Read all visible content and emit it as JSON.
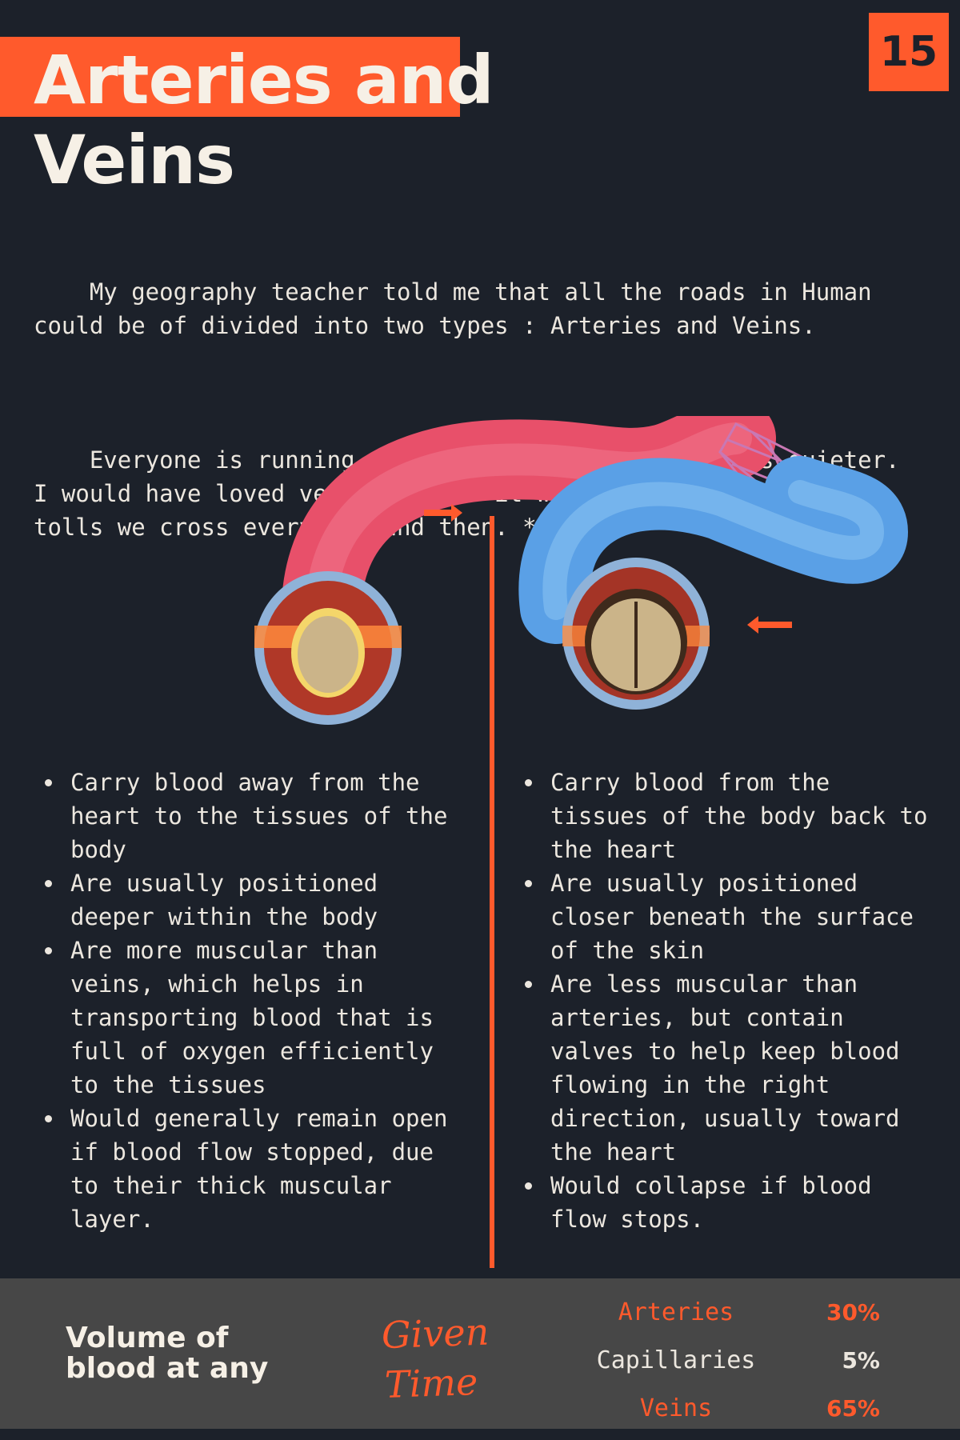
{
  "header": {
    "title_line1": "Arteries and",
    "title_line2": "Veins",
    "page_number": "15"
  },
  "intro": {
    "paragraph1": "    My geography teacher told me that all the roads in Human\ncould be of divided into two types : Arteries and Veins.",
    "paragraph2": "    Everyone is running to work in Arteries. Veins is quieter.\nI would have loved veins more if it weren't for these highway\ntolls we cross every now and then. *Sigh*"
  },
  "arteries": {
    "points": [
      "Carry blood away from the heart to the tissues of the body",
      "Are usually positioned deeper within the body",
      "Are more muscular than veins, which helps in transporting blood that is full of oxygen efficiently to the tissues",
      "Would generally remain open if blood flow stopped, due to their thick muscular layer."
    ]
  },
  "veins": {
    "points": [
      "Carry blood from the tissues of the body back to the heart",
      "Are usually positioned closer beneath the surface of the skin",
      "Are less muscular than arteries, but contain valves to help keep blood flowing in the right direction, usually toward the heart",
      "Would collapse if blood flow stops."
    ]
  },
  "footer": {
    "volume_label": "Volume of blood at any",
    "given_time": "Given Time",
    "stats": [
      {
        "label": "Arteries",
        "value": "30%",
        "label_color": "#ff5a2c",
        "value_color": "#ff5a2c"
      },
      {
        "label": "Capillaries",
        "value": "5%",
        "label_color": "#ece7df",
        "value_color": "#ece7df"
      },
      {
        "label": "Veins",
        "value": "65%",
        "label_color": "#ff5a2c",
        "value_color": "#ff5a2c"
      }
    ]
  },
  "colors": {
    "accent": "#ff5a2c",
    "background": "#1c212a",
    "footer_bg": "#474747",
    "artery": "#e8506a",
    "vein": "#5aa0e6"
  },
  "icons": {
    "artery_flow": "arrow-right-icon",
    "vein_flow": "arrow-left-icon"
  }
}
